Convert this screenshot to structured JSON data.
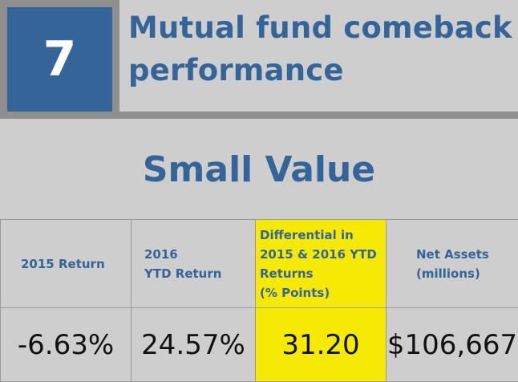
{
  "header": {
    "number": "7",
    "title_line1": "Mutual fund comeback",
    "title_line2": "performance"
  },
  "section": {
    "title": "Small Value"
  },
  "table": {
    "headers": [
      [
        "2015 Return"
      ],
      [
        "2016",
        "YTD Return"
      ],
      [
        "Differential in",
        "2015 & 2016 YTD",
        "Returns",
        "(% Points)"
      ],
      [
        "Net Assets",
        "(millions)"
      ]
    ],
    "values": [
      "-6.63%",
      "24.57%",
      "31.20",
      "$106,667"
    ]
  },
  "colors": {
    "accent_blue": "#346498",
    "highlight_yellow": "#f6ea05",
    "background_gray": "#cecece",
    "border_gray": "#8f8f8f"
  }
}
